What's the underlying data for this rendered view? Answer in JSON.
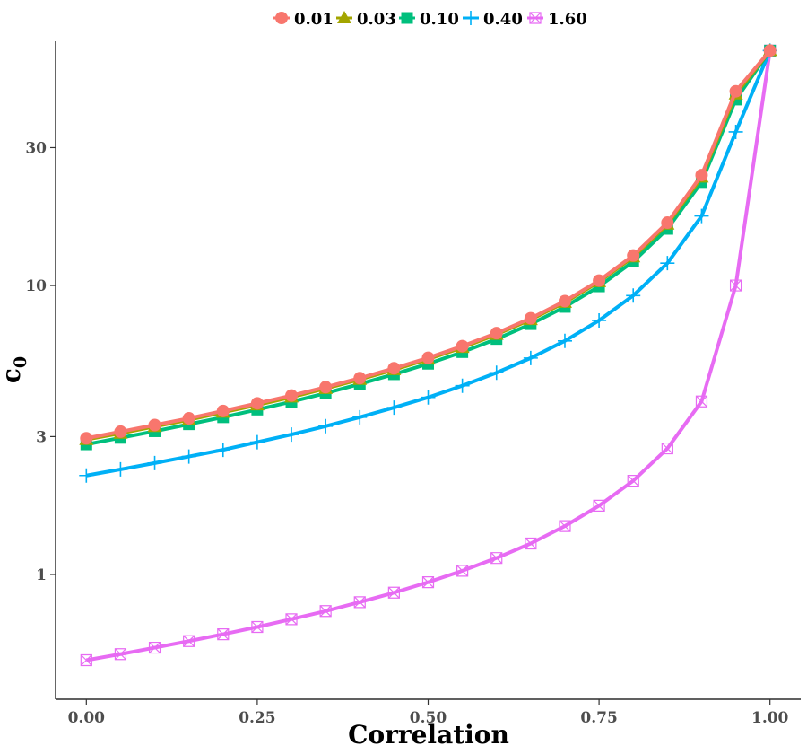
{
  "chart_data": {
    "type": "line",
    "xlabel": "Correlation",
    "ylabel": "c",
    "ylabel_subscript": "0",
    "x_scale": "linear",
    "y_scale": "log",
    "xlim": [
      -0.045,
      1.045
    ],
    "ylim": [
      0.37,
      70
    ],
    "x_ticks": [
      0,
      0.25,
      0.5,
      0.75,
      1
    ],
    "x_tick_labels": [
      "0.00",
      "0.25",
      "0.50",
      "0.75",
      "1.00"
    ],
    "y_ticks": [
      1,
      3,
      10,
      30
    ],
    "y_tick_labels": [
      "1",
      "3",
      "10",
      "30"
    ],
    "grid": false,
    "legend_position": "top",
    "x": [
      0,
      0.05,
      0.1,
      0.15,
      0.2,
      0.25,
      0.3,
      0.35,
      0.4,
      0.45,
      0.5,
      0.55,
      0.6,
      0.65,
      0.7,
      0.75,
      0.8,
      0.85,
      0.9,
      0.95,
      1.0
    ],
    "series": [
      {
        "name": "0.01",
        "color": "#F8766D",
        "marker": "circle",
        "values": [
          2.96,
          3.12,
          3.29,
          3.47,
          3.68,
          3.91,
          4.16,
          4.45,
          4.78,
          5.17,
          5.62,
          6.17,
          6.84,
          7.7,
          8.83,
          10.4,
          12.7,
          16.5,
          24.1,
          47.0,
          65.0
        ]
      },
      {
        "name": "0.03",
        "color": "#A3A500",
        "marker": "triangle",
        "values": [
          2.93,
          3.08,
          3.25,
          3.43,
          3.64,
          3.86,
          4.11,
          4.4,
          4.73,
          5.11,
          5.56,
          6.1,
          6.77,
          7.62,
          8.74,
          10.3,
          12.55,
          16.3,
          23.7,
          46.0,
          65.0
        ]
      },
      {
        "name": "0.10",
        "color": "#00BF7D",
        "marker": "square",
        "values": [
          2.82,
          2.97,
          3.13,
          3.31,
          3.5,
          3.72,
          3.96,
          4.24,
          4.56,
          4.93,
          5.36,
          5.88,
          6.53,
          7.35,
          8.43,
          9.93,
          12.1,
          15.7,
          22.8,
          44.0,
          65.0
        ]
      },
      {
        "name": "0.40",
        "color": "#00B0F6",
        "marker": "plus",
        "values": [
          2.2,
          2.31,
          2.43,
          2.56,
          2.7,
          2.87,
          3.05,
          3.26,
          3.5,
          3.78,
          4.1,
          4.5,
          4.99,
          5.61,
          6.43,
          7.57,
          9.23,
          11.95,
          17.4,
          34.0,
          65.0
        ]
      },
      {
        "name": "1.60",
        "color": "#E76BF3",
        "marker": "square-x",
        "values": [
          0.505,
          0.53,
          0.558,
          0.588,
          0.621,
          0.658,
          0.7,
          0.747,
          0.802,
          0.865,
          0.94,
          1.03,
          1.14,
          1.28,
          1.47,
          1.73,
          2.11,
          2.73,
          3.97,
          10.0,
          65.0
        ]
      }
    ]
  }
}
